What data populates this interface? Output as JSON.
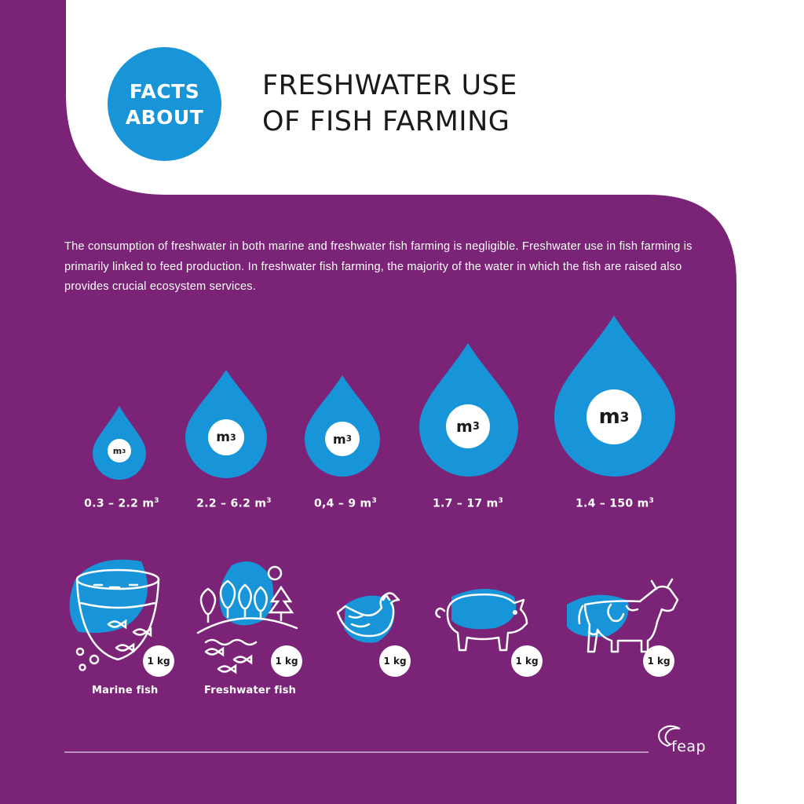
{
  "header": {
    "badge_line1": "FACTS",
    "badge_line2": "ABOUT",
    "title_line1": "FRESHWATER USE",
    "title_line2": "OF FISH FARMING"
  },
  "intro_text": "The consumption of freshwater in both marine and freshwater fish farming is negligible. Freshwater use in fish farming is primarily linked to feed production. In freshwater fish farming, the majority of the water in which the fish are raised also provides crucial ecosystem services.",
  "unit_label": "m",
  "unit_exponent": "3",
  "drops": [
    {
      "range": "0.3 – 2.2 m",
      "exp": "3"
    },
    {
      "range": "2.2 – 6.2 m",
      "exp": "3"
    },
    {
      "range": "0,4 – 9 m",
      "exp": "3"
    },
    {
      "range": "1.7 – 17 m",
      "exp": "3"
    },
    {
      "range": "1.4 – 150 m",
      "exp": "3"
    }
  ],
  "animals": [
    {
      "icon": "marine-fish-tank-icon",
      "caption": "Marine fish",
      "qty": "1 kg"
    },
    {
      "icon": "freshwater-pond-icon",
      "caption": "Freshwater fish",
      "qty": "1 kg"
    },
    {
      "icon": "chicken-icon",
      "caption": "",
      "qty": "1 kg"
    },
    {
      "icon": "pig-icon",
      "caption": "",
      "qty": "1 kg"
    },
    {
      "icon": "cow-icon",
      "caption": "",
      "qty": "1 kg"
    }
  ],
  "logo_text": "feap",
  "colors": {
    "purple": "#7a2377",
    "blue": "#1795d8",
    "white": "#ffffff"
  }
}
